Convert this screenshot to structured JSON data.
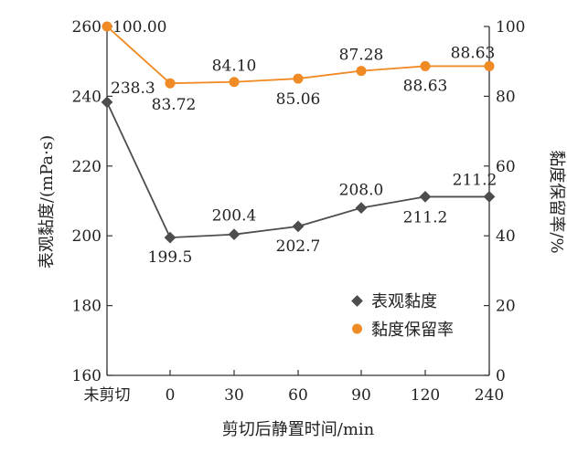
{
  "chart_data": {
    "type": "line",
    "categories": [
      "未剪切",
      "0",
      "30",
      "60",
      "90",
      "120",
      "240"
    ],
    "xlabel": "剪切后静置时间/min",
    "ylabel_left": "表观黏度/(mPa·s)",
    "ylabel_right": "黏度保留率/%",
    "ylim_left": [
      160,
      260
    ],
    "yticks_left": [
      "160",
      "180",
      "200",
      "220",
      "240",
      "260"
    ],
    "ylim_right": [
      0,
      100
    ],
    "yticks_right": [
      "0",
      "20",
      "40",
      "60",
      "80",
      "100"
    ],
    "grid": false,
    "legend_position": "bottom-right",
    "series": [
      {
        "name": "表观黏度",
        "axis": "left",
        "color": "#4d4d4d",
        "marker": "diamond",
        "values": [
          238.3,
          199.5,
          200.4,
          202.7,
          208.0,
          211.2,
          211.2
        ],
        "labels": [
          "238.3",
          "199.5",
          "200.4",
          "202.7",
          "208.0",
          "211.2",
          "211.2"
        ]
      },
      {
        "name": "黏度保留率",
        "axis": "right",
        "color": "#f08a24",
        "marker": "circle",
        "values": [
          100.0,
          83.72,
          84.1,
          85.06,
          87.28,
          88.63,
          88.63
        ],
        "labels": [
          "100.00",
          "83.72",
          "84.10",
          "85.06",
          "87.28",
          "88.63",
          "88.63"
        ]
      }
    ]
  }
}
